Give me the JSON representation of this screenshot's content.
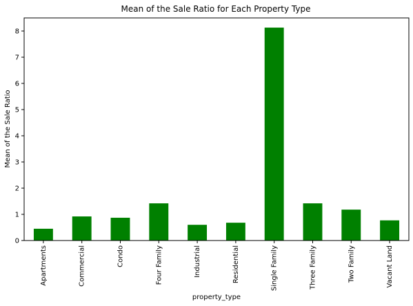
{
  "chart_data": {
    "type": "bar",
    "title": "Mean of the Sale Ratio for Each Property Type",
    "xlabel": "property_type",
    "ylabel": "Mean of the Sale Ratio",
    "categories": [
      "Apartments",
      "Commercial",
      "Condo",
      "Four Family",
      "Industrial",
      "Residential",
      "Single Family",
      "Three Family",
      "Two Family",
      "Vacant Land"
    ],
    "values": [
      0.45,
      0.92,
      0.87,
      1.42,
      0.6,
      0.68,
      8.13,
      1.42,
      1.18,
      0.77
    ],
    "ylim": [
      0,
      8.5
    ],
    "yticks": [
      0,
      1,
      2,
      3,
      4,
      5,
      6,
      7,
      8
    ],
    "bar_color": "#008000",
    "grid": false,
    "legend": "none"
  }
}
